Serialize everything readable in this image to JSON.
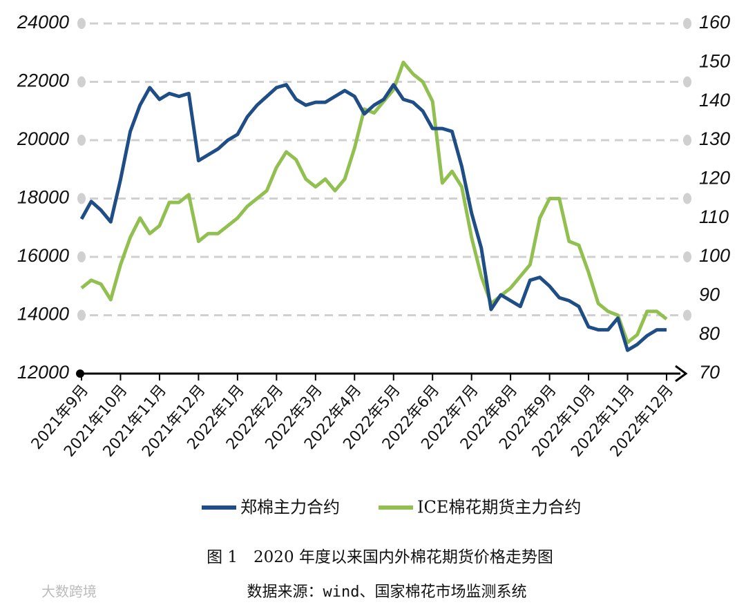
{
  "chart_data": {
    "type": "line",
    "categories": [
      "2021年9月",
      null,
      null,
      null,
      "2021年10月",
      null,
      null,
      null,
      "2021年11月",
      null,
      null,
      null,
      "2021年12月",
      null,
      null,
      null,
      "2022年1月",
      null,
      null,
      null,
      "2022年2月",
      null,
      null,
      null,
      "2022年3月",
      null,
      null,
      null,
      "2022年4月",
      null,
      null,
      null,
      "2022年5月",
      null,
      null,
      null,
      "2022年6月",
      null,
      null,
      null,
      "2022年7月",
      null,
      null,
      null,
      "2022年8月",
      null,
      null,
      null,
      "2022年9月",
      null,
      null,
      null,
      "2022年10月",
      null,
      null,
      null,
      "2022年11月",
      null,
      null,
      null,
      "2022年12月"
    ],
    "series": [
      {
        "name": "郑棉主力合约",
        "color": "#1f4e87",
        "axis": "y",
        "values": [
          17300,
          17900,
          17600,
          17200,
          18650,
          20300,
          21200,
          21800,
          21400,
          21600,
          21500,
          21600,
          19300,
          19500,
          19700,
          20000,
          20200,
          20800,
          21200,
          21500,
          21800,
          21900,
          21400,
          21200,
          21300,
          21300,
          21500,
          21700,
          21500,
          20900,
          21200,
          21400,
          21900,
          21400,
          21300,
          21000,
          20400,
          20400,
          20300,
          19100,
          17500,
          16300,
          14200,
          14700,
          14500,
          14300,
          15200,
          15300,
          15000,
          14600,
          14500,
          14300,
          13600,
          13500,
          13500,
          13900,
          12800,
          13000,
          13300,
          13500,
          13500
        ]
      },
      {
        "name": "ICE棉花期货主力合约",
        "color": "#92c050",
        "axis": "y2",
        "values": [
          92,
          94,
          93,
          89,
          98,
          105,
          110,
          106,
          108,
          114,
          114,
          116,
          104,
          106,
          106,
          108,
          110,
          113,
          115,
          117,
          123,
          127,
          125,
          120,
          118,
          120,
          117,
          120,
          128,
          138,
          137,
          140,
          143,
          150,
          147,
          145,
          140,
          119,
          122,
          118,
          105,
          95,
          88,
          90,
          92,
          95,
          98,
          110,
          115,
          115,
          104,
          103,
          96,
          88,
          86,
          85,
          78,
          80,
          86,
          86,
          84
        ]
      }
    ],
    "ylim": [
      12000,
      24000
    ],
    "yticks": [
      12000,
      14000,
      16000,
      18000,
      20000,
      22000,
      24000
    ],
    "y2lim": [
      70,
      160
    ],
    "y2ticks": [
      70,
      80,
      90,
      100,
      110,
      120,
      130,
      140,
      150,
      160
    ],
    "grid": true,
    "legend": "bottom",
    "caption": "图 1　2020 年度以来国内外棉花期货价格走势图",
    "source": "数据来源：wind、国家棉花市场监测系统",
    "watermark": "大数跨境"
  }
}
